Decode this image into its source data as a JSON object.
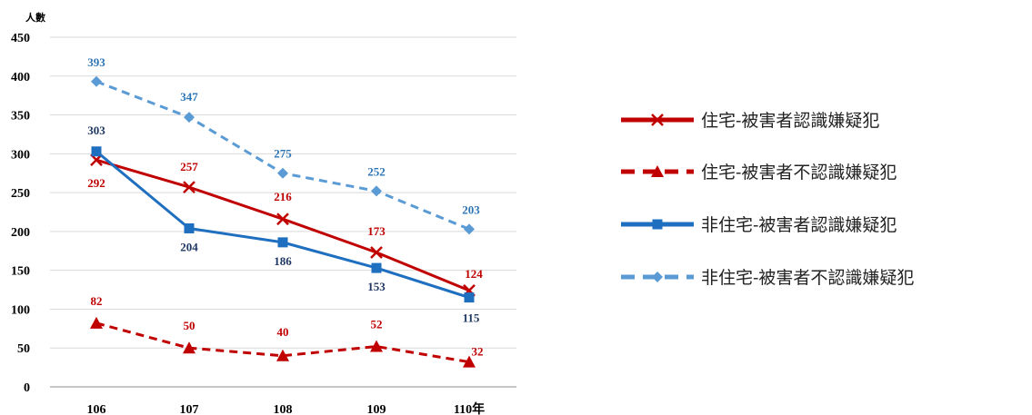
{
  "chart_data": {
    "type": "line",
    "ylabel": "人數",
    "categories": [
      "106",
      "107",
      "108",
      "109",
      "110年"
    ],
    "ylim": [
      0,
      450
    ],
    "yticks": [
      0,
      50,
      100,
      150,
      200,
      250,
      300,
      350,
      400,
      450
    ],
    "grid": true,
    "legend_position": "right",
    "series": [
      {
        "name": "住宅-被害者認識嫌疑犯",
        "values": [
          292,
          257,
          216,
          173,
          124
        ],
        "color": "#c00000",
        "dash": "solid",
        "marker": "x",
        "label_color": "#c00000"
      },
      {
        "name": "住宅-被害者不認識嫌疑犯",
        "values": [
          82,
          50,
          40,
          52,
          32
        ],
        "color": "#c00000",
        "dash": "dashed",
        "marker": "triangle",
        "label_color": "#c00000"
      },
      {
        "name": "非住宅-被害者認識嫌疑犯",
        "values": [
          303,
          204,
          186,
          153,
          115
        ],
        "color": "#1f6fc0",
        "dash": "solid",
        "marker": "square",
        "label_color": "#1f3864"
      },
      {
        "name": "非住宅-被害者不認識嫌疑犯",
        "values": [
          393,
          347,
          275,
          252,
          203
        ],
        "color": "#5b9bd5",
        "dash": "dashed",
        "marker": "diamond",
        "label_color": "#2e75b6"
      }
    ]
  }
}
